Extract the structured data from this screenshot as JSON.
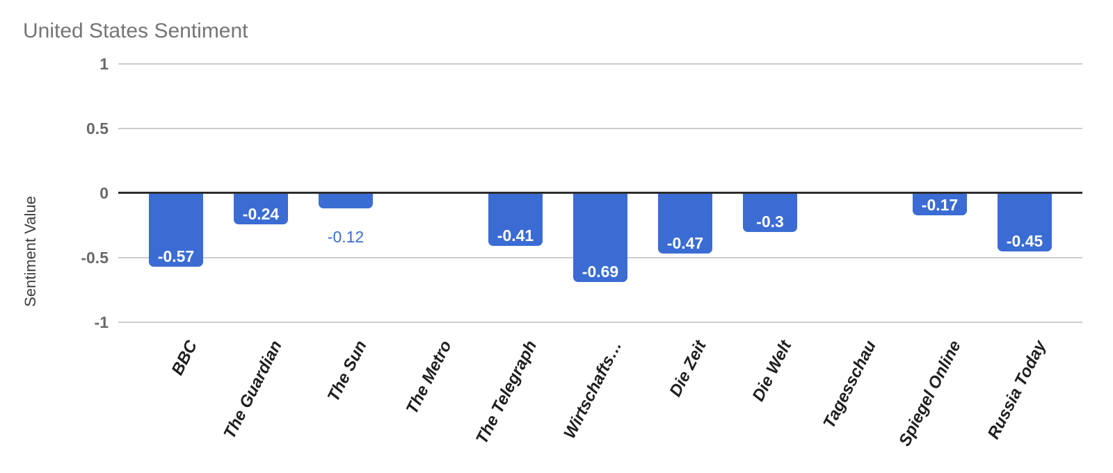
{
  "chart_data": {
    "type": "bar",
    "title": "United States Sentiment",
    "ylabel": "Sentiment Value",
    "xlabel": "",
    "categories": [
      "BBC",
      "The Guardian",
      "The Sun",
      "The Metro",
      "The Telegraph",
      "Wirtschafts…",
      "Die Zeit",
      "Die Welt",
      "Tagesschau",
      "Spiegel Online",
      "Russia Today"
    ],
    "values": [
      -0.57,
      -0.24,
      -0.12,
      null,
      -0.41,
      -0.69,
      -0.47,
      -0.3,
      null,
      -0.17,
      -0.45
    ],
    "annotations": [
      "-0.57",
      "-0.24",
      "-0.12",
      null,
      "-0.41",
      "-0.69",
      "-0.47",
      "-0.3",
      null,
      "-0.17",
      "-0.45"
    ],
    "annotation_placement": [
      "inside",
      "inside",
      "outside",
      null,
      "inside",
      "inside",
      "inside",
      "inside",
      null,
      "inside",
      "inside"
    ],
    "ylim": [
      -1,
      1
    ],
    "yticks": [
      "1",
      "0.5",
      "0",
      "-0.5",
      "-1"
    ],
    "grid": true,
    "legend": "none",
    "colors": {
      "bar": "#3b6cd3",
      "title": "#757575",
      "axis_title": "#3c3c3c",
      "ytick_label": "#696969",
      "xtick_label": "#1f1f1f",
      "gridline": "#cccccc",
      "zero_line": "#2b2b2b",
      "annotation_inside": "#ffffff",
      "annotation_outside": "#3b6cd3",
      "background": "#ffffff"
    }
  }
}
